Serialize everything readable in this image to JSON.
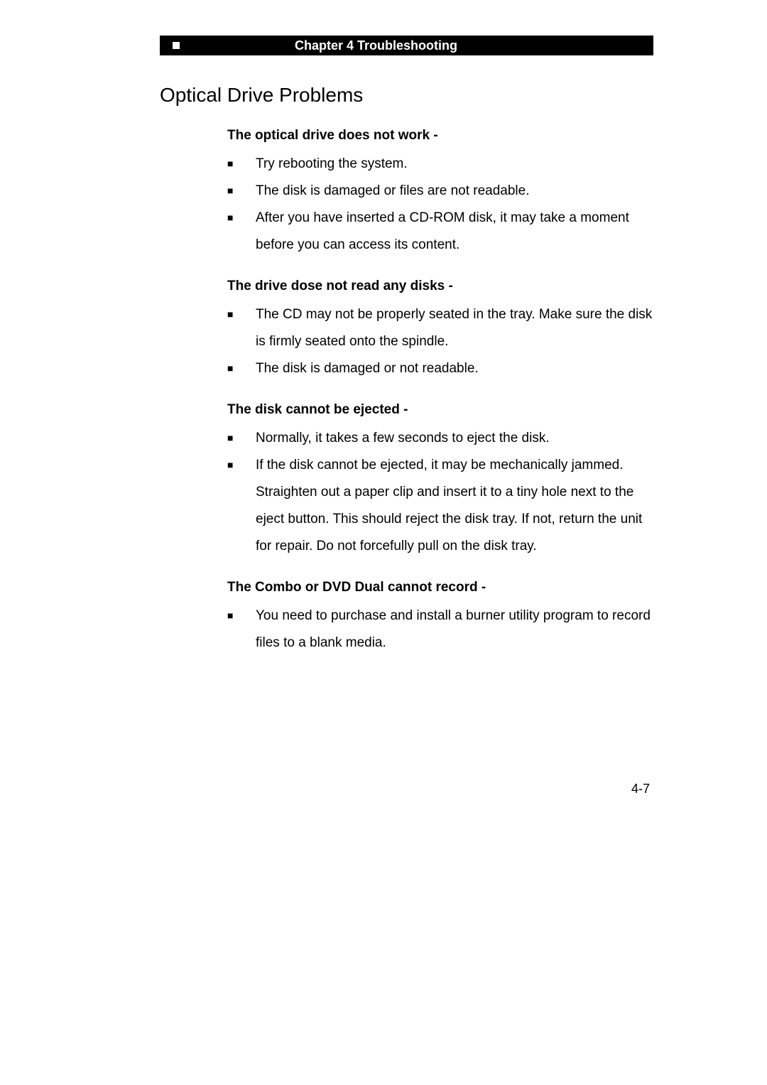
{
  "header": {
    "text": "Chapter 4 Troubleshooting"
  },
  "section_title": "Optical Drive Problems",
  "groups": [
    {
      "title": "The optical drive does not work -",
      "items": [
        "Try rebooting the system.",
        "The disk is damaged or files are not readable.",
        "After you have inserted a CD-ROM disk, it may take a moment before you can access its content."
      ]
    },
    {
      "title": "The drive dose not read any disks -",
      "items": [
        "The CD may not be properly seated in the tray. Make sure the disk is firmly seated onto the spindle.",
        "The disk is damaged or not readable."
      ]
    },
    {
      "title": "The disk cannot be ejected -",
      "items": [
        "Normally, it takes a few seconds to eject the disk.",
        "If the disk cannot be ejected, it may be mechanically jammed. Straighten out a paper clip and insert it to a tiny hole next to the eject button. This should reject the disk tray. If not, return the unit for repair. Do not forcefully pull on the disk tray."
      ]
    },
    {
      "title": "The Combo or DVD Dual cannot record -",
      "items": [
        "You need to purchase and install a burner utility program to record files to a blank media."
      ]
    }
  ],
  "page_number": "4-7",
  "bullet_glyph": "■"
}
